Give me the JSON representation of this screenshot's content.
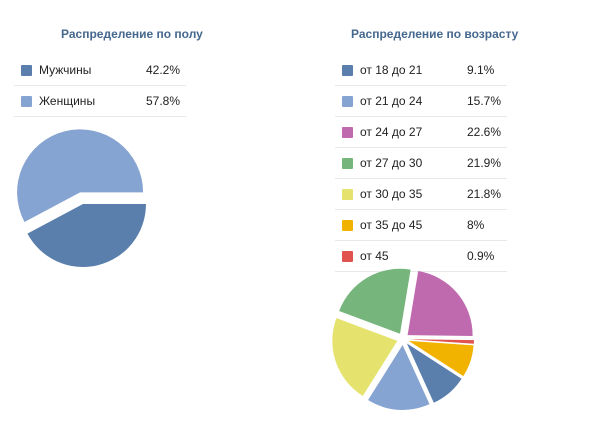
{
  "chart_data": [
    {
      "type": "pie",
      "title": "Распределение по полу",
      "slices": [
        {
          "label": "Мужчины",
          "value_text": "42.2%",
          "value": 42.2,
          "color": "#5b7fad"
        },
        {
          "label": "Женщины",
          "value_text": "57.8%",
          "value": 57.8,
          "color": "#86a4d1"
        }
      ],
      "exploded_slice": "Женщины",
      "legend_position": "top"
    },
    {
      "type": "pie",
      "title": "Распределение по возрасту",
      "slices": [
        {
          "label": "от 18 до 21",
          "value_text": "9.1%",
          "value": 9.1,
          "color": "#5b7fad"
        },
        {
          "label": "от 21 до 24",
          "value_text": "15.7%",
          "value": 15.7,
          "color": "#86a4d1"
        },
        {
          "label": "от 24 до 27",
          "value_text": "22.6%",
          "value": 22.6,
          "color": "#bf6aaf"
        },
        {
          "label": "от 27 до 30",
          "value_text": "21.9%",
          "value": 21.9,
          "color": "#76b57c"
        },
        {
          "label": "от 30 до 35",
          "value_text": "21.8%",
          "value": 21.8,
          "color": "#e5e36e"
        },
        {
          "label": "от 35 до 45",
          "value_text": "8%",
          "value": 8,
          "color": "#f2b200"
        },
        {
          "label": "от 45",
          "value_text": "0.9%",
          "value": 0.9,
          "color": "#e0534f"
        }
      ],
      "exploded_slice": "all",
      "legend_position": "top"
    }
  ]
}
